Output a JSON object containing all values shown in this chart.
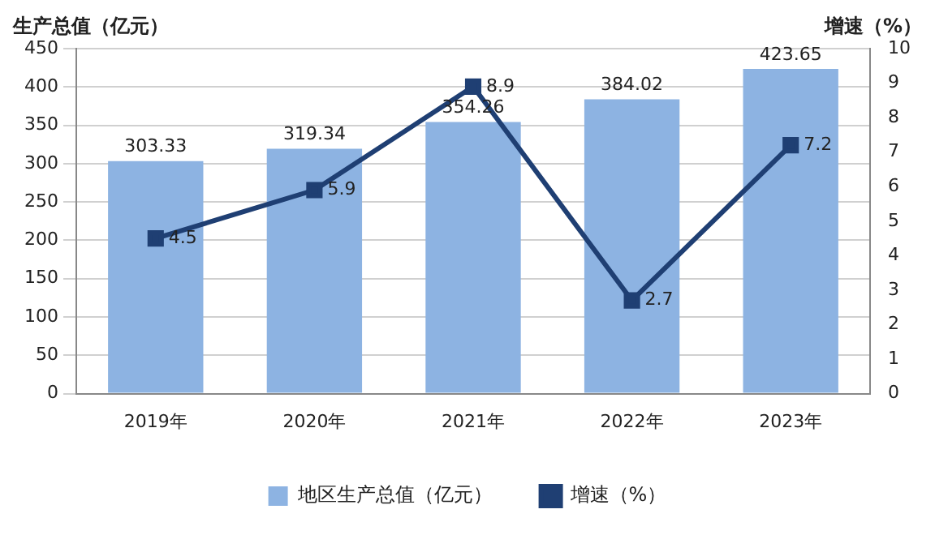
{
  "chart_data": {
    "type": "bar",
    "ylabel": "生产总值（亿元）",
    "y2label": "增速（%）",
    "categories": [
      "2019年",
      "2020年",
      "2021年",
      "2022年",
      "2023年"
    ],
    "series": [
      {
        "name": "地区生产总值（亿元）",
        "color": "#8db3e2",
        "values": [
          303.33,
          319.34,
          354.26,
          384.02,
          423.65
        ]
      },
      {
        "name": "增速（%）",
        "type": "line",
        "axis": "y2",
        "color": "#1f3f73",
        "marker": "square",
        "line_style": "solid",
        "values": [
          4.5,
          5.9,
          8.9,
          2.7,
          7.2
        ]
      }
    ],
    "ylim": [
      0,
      450
    ],
    "yticks": [
      0,
      50,
      100,
      150,
      200,
      250,
      300,
      350,
      400,
      450
    ],
    "y2lim": [
      0,
      10
    ],
    "y2ticks": [
      0,
      1,
      2,
      3,
      4,
      5,
      6,
      7,
      8,
      9,
      10
    ],
    "grid": "y",
    "legend": "bottom",
    "data_labels": true
  }
}
